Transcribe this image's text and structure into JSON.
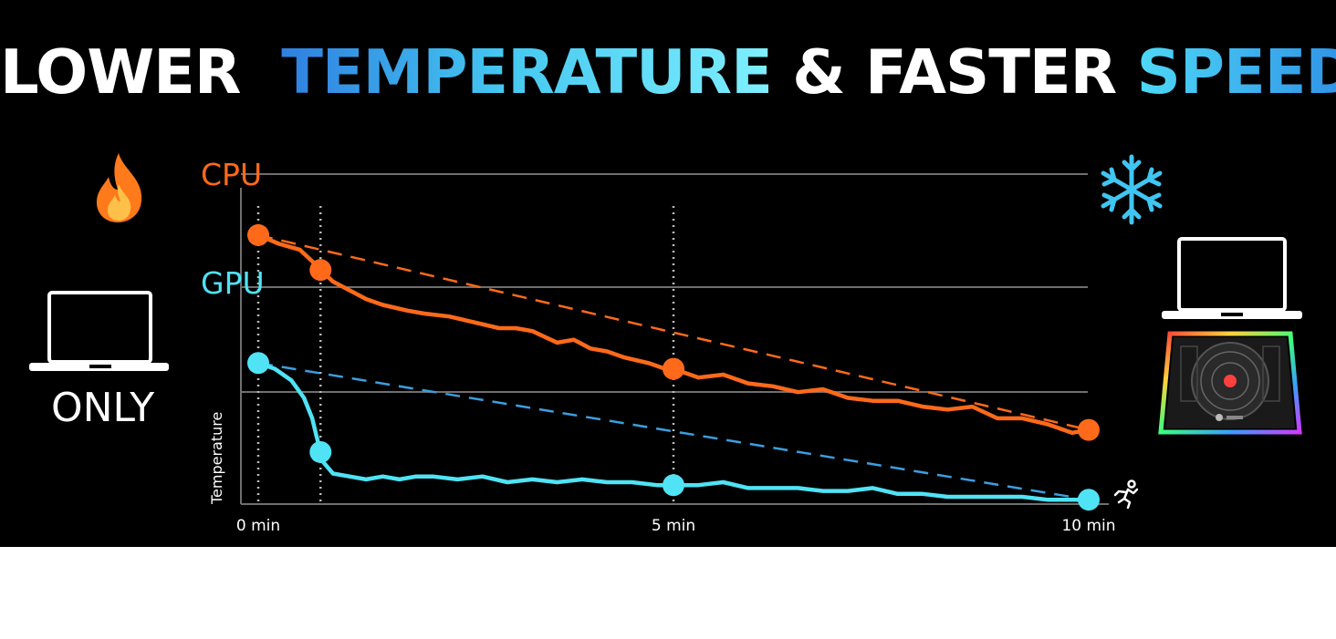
{
  "headline": {
    "part1": "LOWER",
    "part2": "TEMPERATURE",
    "part3": "& FASTER",
    "part4": "SPEED"
  },
  "left_panel": {
    "icons": [
      "flame-icon",
      "laptop-icon"
    ],
    "label": "ONLY"
  },
  "right_panel": {
    "icons": [
      "snowflake-icon",
      "laptop-icon",
      "cooling-pad-image",
      "running-person-icon"
    ]
  },
  "colors": {
    "cpu": "#ff6a1a",
    "gpu": "#4fe3f5",
    "gpu_trend": "#3a9fe0",
    "grid": "#6f6f6f",
    "background": "#000000"
  },
  "chart_data": {
    "type": "line",
    "title": "",
    "xlabel": "",
    "ylabel": "Temperature",
    "x_ticks": [
      "0 min",
      "5 min",
      "10 min"
    ],
    "xlim": [
      0,
      10
    ],
    "ylim": [
      0,
      100
    ],
    "grid": "horizontal",
    "series_labels": [
      "CPU",
      "GPU"
    ],
    "series": [
      {
        "name": "CPU",
        "x": [
          0,
          0.25,
          0.5,
          0.65,
          0.75,
          0.9,
          1.1,
          1.3,
          1.5,
          1.8,
          2.0,
          2.3,
          2.6,
          2.9,
          3.1,
          3.3,
          3.6,
          3.8,
          4.0,
          4.2,
          4.4,
          4.7,
          4.9,
          5.0,
          5.3,
          5.6,
          5.9,
          6.2,
          6.5,
          6.8,
          7.1,
          7.4,
          7.7,
          8.0,
          8.3,
          8.6,
          8.9,
          9.2,
          9.5,
          9.8,
          10.0
        ],
        "values": [
          90,
          87,
          85,
          81,
          78,
          74,
          71,
          68,
          66,
          64,
          63,
          62,
          60,
          58,
          58,
          57,
          53,
          54,
          51,
          50,
          48,
          46,
          44,
          44,
          41,
          42,
          39,
          38,
          36,
          37,
          34,
          33,
          33,
          31,
          30,
          31,
          27,
          27,
          25,
          22,
          23
        ]
      },
      {
        "name": "GPU",
        "x": [
          0,
          0.2,
          0.4,
          0.55,
          0.65,
          0.7,
          0.78,
          0.9,
          1.1,
          1.3,
          1.5,
          1.7,
          1.9,
          2.1,
          2.4,
          2.7,
          3.0,
          3.3,
          3.6,
          3.9,
          4.2,
          4.5,
          4.8,
          5.0,
          5.3,
          5.6,
          5.9,
          6.2,
          6.5,
          6.8,
          7.1,
          7.4,
          7.7,
          8.0,
          8.3,
          8.6,
          8.9,
          9.2,
          9.5,
          9.8,
          10.0
        ],
        "values": [
          46,
          44,
          40,
          34,
          27,
          21,
          12,
          8,
          7,
          6,
          7,
          6,
          7,
          7,
          6,
          7,
          5,
          6,
          5,
          6,
          5,
          5,
          4,
          4,
          4,
          5,
          3,
          3,
          3,
          2,
          2,
          3,
          1,
          1,
          0,
          0,
          0,
          0,
          -1,
          -1,
          -1
        ]
      }
    ],
    "markers": [
      {
        "series": "CPU",
        "x": [
          0,
          0.75,
          5,
          10
        ]
      },
      {
        "series": "GPU",
        "x": [
          0,
          0.75,
          5,
          10
        ]
      }
    ],
    "trendlines": [
      {
        "series": "CPU",
        "from": [
          0,
          90
        ],
        "to": [
          10,
          23
        ],
        "style": "dashed"
      },
      {
        "series": "GPU",
        "from": [
          0,
          46
        ],
        "to": [
          10,
          -1
        ],
        "style": "dashed"
      }
    ]
  }
}
